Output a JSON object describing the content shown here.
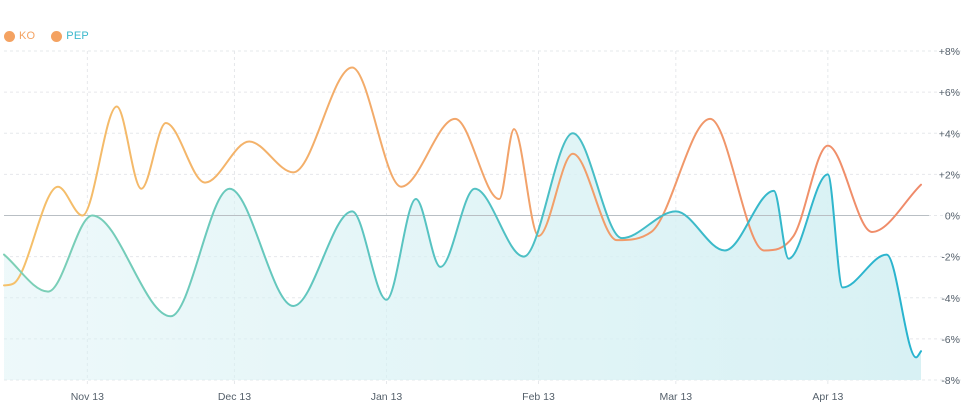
{
  "legend": [
    {
      "name": "KO",
      "color": "#f4a261",
      "text_color": "#f4a261"
    },
    {
      "name": "PEP",
      "color": "#f4a261",
      "text_color": "#3bb8cc"
    }
  ],
  "chart_data": {
    "type": "line",
    "title": "",
    "xlabel": "",
    "ylabel": "",
    "ylim": [
      -8,
      8
    ],
    "y_ticks": [
      "+8%",
      "+6%",
      "+4%",
      "+2%",
      "0%",
      "-2%",
      "-4%",
      "-6%",
      "-8%"
    ],
    "x_ticks": [
      "Nov 13",
      "Dec 13",
      "Jan 13",
      "Feb 13",
      "Mar 13",
      "Apr 13"
    ],
    "x_tick_days": [
      21,
      51,
      82,
      113,
      141,
      172
    ],
    "x_range_days": [
      4,
      191
    ],
    "grid": true,
    "y_axis_position": "right",
    "legend_position": "top-left",
    "series": [
      {
        "name": "KO",
        "color_start": "#f5c16a",
        "color_end": "#ef8a6a",
        "points": [
          {
            "day": 4,
            "value": -3.4
          },
          {
            "day": 6,
            "value": -3.3
          },
          {
            "day": 15,
            "value": 1.4
          },
          {
            "day": 20,
            "value": 0.0
          },
          {
            "day": 27,
            "value": 5.3
          },
          {
            "day": 32,
            "value": 1.3
          },
          {
            "day": 37,
            "value": 4.5
          },
          {
            "day": 45,
            "value": 1.6
          },
          {
            "day": 54,
            "value": 3.6
          },
          {
            "day": 63,
            "value": 2.1
          },
          {
            "day": 75,
            "value": 7.2
          },
          {
            "day": 85,
            "value": 1.4
          },
          {
            "day": 96,
            "value": 4.7
          },
          {
            "day": 105,
            "value": 0.8
          },
          {
            "day": 108,
            "value": 4.2
          },
          {
            "day": 113,
            "value": -1.0
          },
          {
            "day": 120,
            "value": 3.0
          },
          {
            "day": 129,
            "value": -1.2
          },
          {
            "day": 136,
            "value": -0.8
          },
          {
            "day": 148,
            "value": 4.7
          },
          {
            "day": 159,
            "value": -1.7
          },
          {
            "day": 165,
            "value": -1.0
          },
          {
            "day": 172,
            "value": 3.4
          },
          {
            "day": 181,
            "value": -0.8
          },
          {
            "day": 191,
            "value": 1.5
          }
        ]
      },
      {
        "name": "PEP",
        "fill": "#d8f1f4",
        "color_start": "#7fd0b6",
        "color_end": "#27b3cf",
        "points": [
          {
            "day": 4,
            "value": -1.9
          },
          {
            "day": 13,
            "value": -3.7
          },
          {
            "day": 22,
            "value": 0.0
          },
          {
            "day": 38,
            "value": -4.9
          },
          {
            "day": 50,
            "value": 1.3
          },
          {
            "day": 63,
            "value": -4.4
          },
          {
            "day": 75,
            "value": 0.2
          },
          {
            "day": 82,
            "value": -4.1
          },
          {
            "day": 88,
            "value": 0.8
          },
          {
            "day": 93,
            "value": -2.5
          },
          {
            "day": 100,
            "value": 1.3
          },
          {
            "day": 110,
            "value": -2.0
          },
          {
            "day": 120,
            "value": 4.0
          },
          {
            "day": 130,
            "value": -1.1
          },
          {
            "day": 141,
            "value": 0.2
          },
          {
            "day": 151,
            "value": -1.7
          },
          {
            "day": 161,
            "value": 1.2
          },
          {
            "day": 164,
            "value": -2.1
          },
          {
            "day": 172,
            "value": 2.0
          },
          {
            "day": 175,
            "value": -3.5
          },
          {
            "day": 184,
            "value": -1.9
          },
          {
            "day": 190,
            "value": -6.9
          },
          {
            "day": 191,
            "value": -6.6
          }
        ]
      }
    ]
  }
}
